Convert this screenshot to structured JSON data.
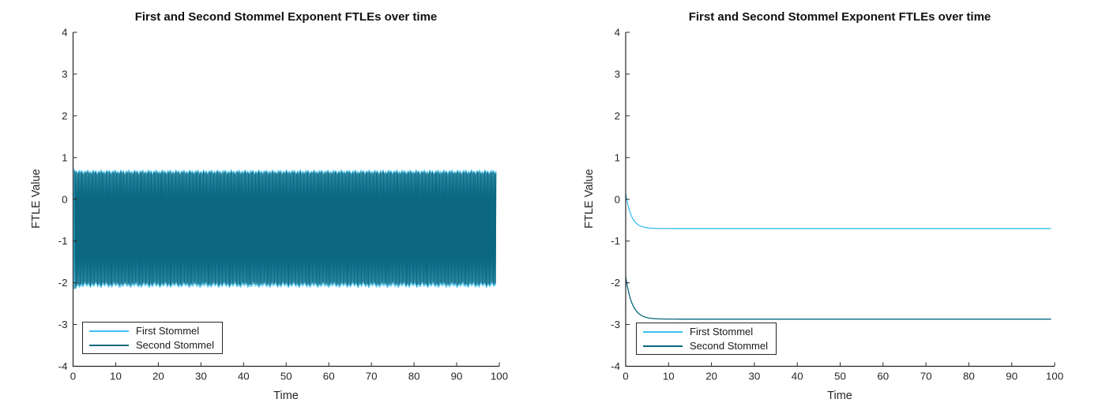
{
  "style": {
    "background": "#ffffff",
    "axis_color": "#262626",
    "tick_label_color": "#262626",
    "title_color": "#111111",
    "first_series_color": "#3BBFEF",
    "second_series_color": "#0B6880"
  },
  "chart_data": [
    {
      "id": "left-chart",
      "type": "line",
      "title": "First and Second Stommel Exponent FTLEs over time",
      "xlabel": "Time",
      "ylabel": "FTLE Value",
      "xlim": [
        0,
        100
      ],
      "ylim": [
        -4,
        4
      ],
      "xticks": [
        0,
        10,
        20,
        30,
        40,
        50,
        60,
        70,
        80,
        90,
        100
      ],
      "yticks": [
        -4,
        -3,
        -2,
        -1,
        0,
        1,
        2,
        3,
        4
      ],
      "grid": false,
      "legend": {
        "position": "southwest",
        "entries": [
          "First Stommel",
          "Second Stommel"
        ]
      },
      "series": [
        {
          "name": "First Stommel",
          "color": "#3BBFEF",
          "kind": "oscillation",
          "t_start": 0.1,
          "t_end": 99.3,
          "envelope_top": 0.68,
          "envelope_bottom": -2.08,
          "start_extra": 0.12,
          "note": "high-frequency oscillation densely filling the envelope band for the whole time span"
        },
        {
          "name": "Second Stommel",
          "color": "#0B6880",
          "kind": "oscillation",
          "t_start": 0.35,
          "t_end": 99.3,
          "envelope_top": 0.64,
          "envelope_bottom": -2.03,
          "start_extra": 0.18,
          "note": "high-frequency oscillation densely filling the envelope band; brief deeper spike to about -2.2 near t=0"
        }
      ]
    },
    {
      "id": "right-chart",
      "type": "line",
      "title": "First and Second Stommel Exponent FTLEs over time",
      "xlabel": "Time",
      "ylabel": "FTLE Value",
      "xlim": [
        0,
        100
      ],
      "ylim": [
        -4,
        4
      ],
      "xticks": [
        0,
        10,
        20,
        30,
        40,
        50,
        60,
        70,
        80,
        90,
        100
      ],
      "yticks": [
        -4,
        -3,
        -2,
        -1,
        0,
        1,
        2,
        3,
        4
      ],
      "grid": false,
      "legend": {
        "position": "southwest",
        "entries": [
          "First Stommel",
          "Second Stommel"
        ]
      },
      "series": [
        {
          "name": "First Stommel",
          "color": "#3BBFEF",
          "kind": "exp_decay",
          "t_start": 0,
          "t_end": 99.3,
          "y0": 0.15,
          "y_inf": -0.7,
          "tau": 1.3,
          "note": "starts near 0.15, decays to flat asymptote at about -0.70 by t of roughly 7"
        },
        {
          "name": "Second Stommel",
          "color": "#0B6880",
          "kind": "exp_decay",
          "t_start": 0,
          "t_end": 99.3,
          "y0": -1.85,
          "y_inf": -2.87,
          "tau": 1.5,
          "note": "starts near -1.85, decays to flat asymptote at about -2.87 by t of roughly 8"
        }
      ]
    }
  ]
}
